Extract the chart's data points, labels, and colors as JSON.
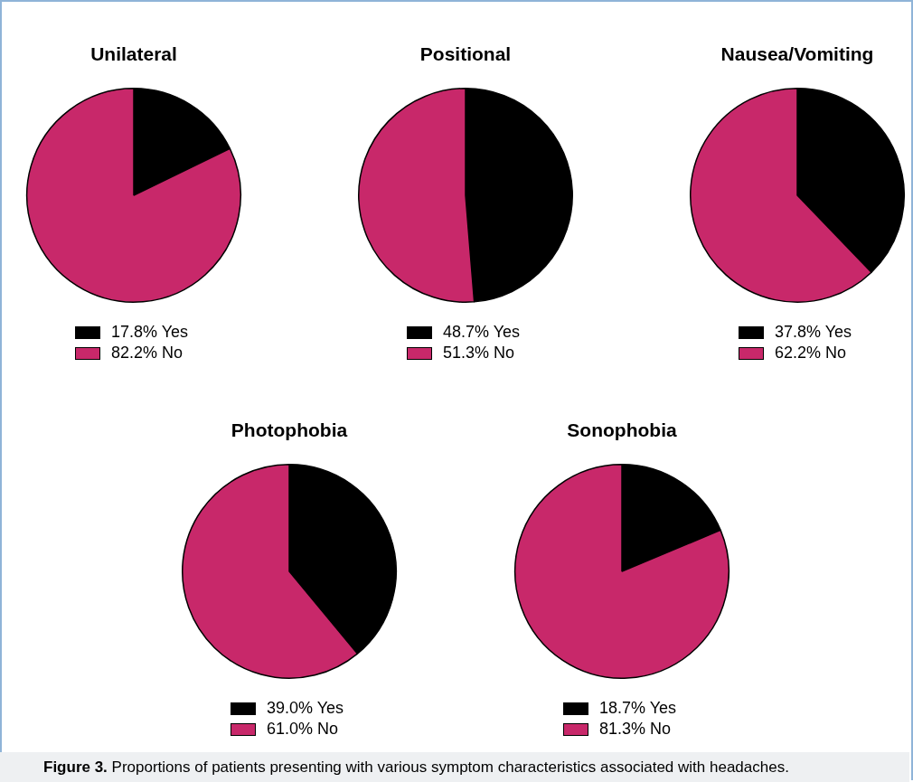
{
  "chart_data": [
    {
      "type": "pie",
      "title": "Unilateral",
      "categories": [
        "17.8% Yes",
        "82.2% No"
      ],
      "values": [
        17.8,
        82.2
      ],
      "colors": [
        "#000000",
        "#c8286a"
      ],
      "legend": "bottom"
    },
    {
      "type": "pie",
      "title": "Positional",
      "categories": [
        "48.7% Yes",
        "51.3% No"
      ],
      "values": [
        48.7,
        51.3
      ],
      "colors": [
        "#000000",
        "#c8286a"
      ],
      "legend": "bottom"
    },
    {
      "type": "pie",
      "title": "Nausea/Vomiting",
      "categories": [
        "37.8% Yes",
        "62.2% No"
      ],
      "values": [
        37.8,
        62.2
      ],
      "colors": [
        "#000000",
        "#c8286a"
      ],
      "legend": "bottom"
    },
    {
      "type": "pie",
      "title": "Photophobia",
      "categories": [
        "39.0% Yes",
        "61.0% No"
      ],
      "values": [
        39.0,
        61.0
      ],
      "colors": [
        "#000000",
        "#c8286a"
      ],
      "legend": "bottom"
    },
    {
      "type": "pie",
      "title": "Sonophobia",
      "categories": [
        "18.7% Yes",
        "81.3% No"
      ],
      "values": [
        18.7,
        81.3
      ],
      "colors": [
        "#000000",
        "#c8286a"
      ],
      "legend": "bottom",
      "annotations": [
        "Figure 3. Proportions of patients presenting with various symptom characteristics associated with headaches."
      ]
    }
  ]
}
